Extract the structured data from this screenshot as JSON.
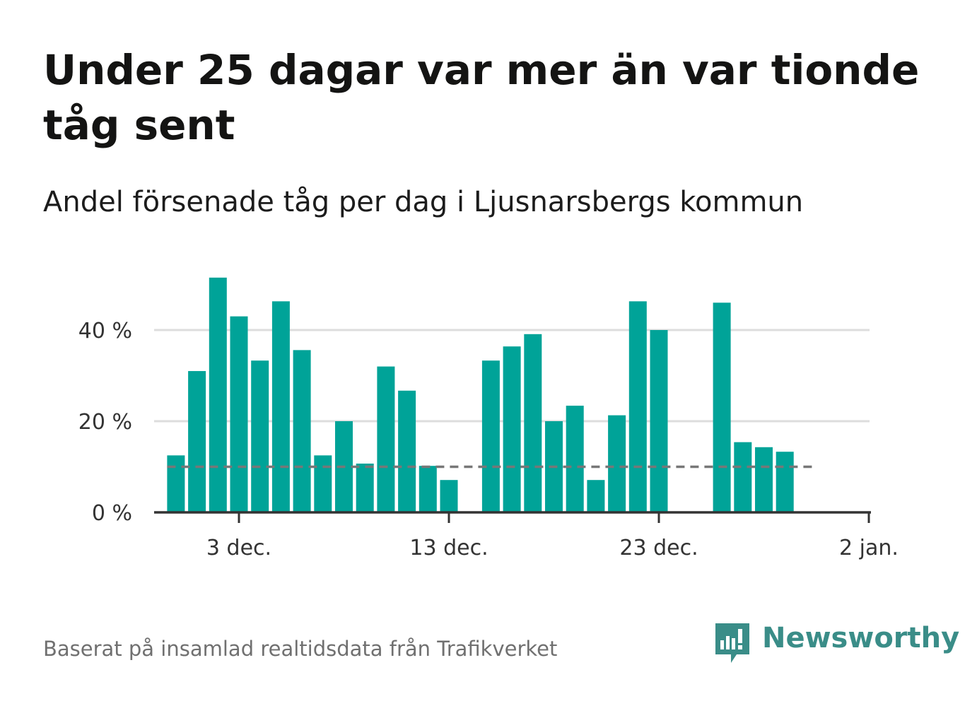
{
  "title": "Under 25 dagar var mer än var tionde tåg sent",
  "subtitle": "Andel försenade tåg per dag i Ljusnarsbergs kommun",
  "source": "Baserat på insamlad realtidsdata från Trafikverket",
  "brand": {
    "name": "Newsworthy",
    "icon": "newsworthy-logo-icon"
  },
  "colors": {
    "bar": "#00a398",
    "reference_line": "#777777",
    "grid": "#dddddd",
    "axis": "#333333",
    "brand": "#3a8d88"
  },
  "chart_data": {
    "type": "bar",
    "x_type": "date",
    "x": [
      "2023-11-30",
      "2023-12-01",
      "2023-12-02",
      "2023-12-03",
      "2023-12-04",
      "2023-12-05",
      "2023-12-06",
      "2023-12-07",
      "2023-12-08",
      "2023-12-09",
      "2023-12-10",
      "2023-12-11",
      "2023-12-12",
      "2023-12-13",
      "2023-12-14",
      "2023-12-15",
      "2023-12-16",
      "2023-12-17",
      "2023-12-18",
      "2023-12-19",
      "2023-12-20",
      "2023-12-21",
      "2023-12-22",
      "2023-12-23",
      "2023-12-24",
      "2023-12-25",
      "2023-12-26",
      "2023-12-27",
      "2023-12-28",
      "2023-12-29",
      "2023-12-30",
      "2023-12-31"
    ],
    "values": [
      12.5,
      31,
      51.5,
      43,
      33.3,
      46.3,
      35.6,
      12.5,
      20,
      10.7,
      32,
      26.7,
      10.2,
      7.1,
      null,
      33.3,
      36.4,
      39.1,
      20,
      23.4,
      7.1,
      21.3,
      46.3,
      40,
      null,
      null,
      46,
      15.4,
      14.3,
      13.3,
      null,
      null
    ],
    "reference_line": {
      "value": 10,
      "style": "dashed"
    },
    "xticks": [
      {
        "date": "2023-12-03",
        "label": "3 dec."
      },
      {
        "date": "2023-12-13",
        "label": "13 dec."
      },
      {
        "date": "2023-12-23",
        "label": "23 dec."
      },
      {
        "date": "2024-01-02",
        "label": "2 jan."
      }
    ],
    "yticks": [
      {
        "value": 0,
        "label": "0 %"
      },
      {
        "value": 20,
        "label": "20 %"
      },
      {
        "value": 40,
        "label": "40 %"
      }
    ],
    "ylim": [
      0,
      52
    ],
    "grid": true,
    "xlabel": "",
    "ylabel": ""
  }
}
